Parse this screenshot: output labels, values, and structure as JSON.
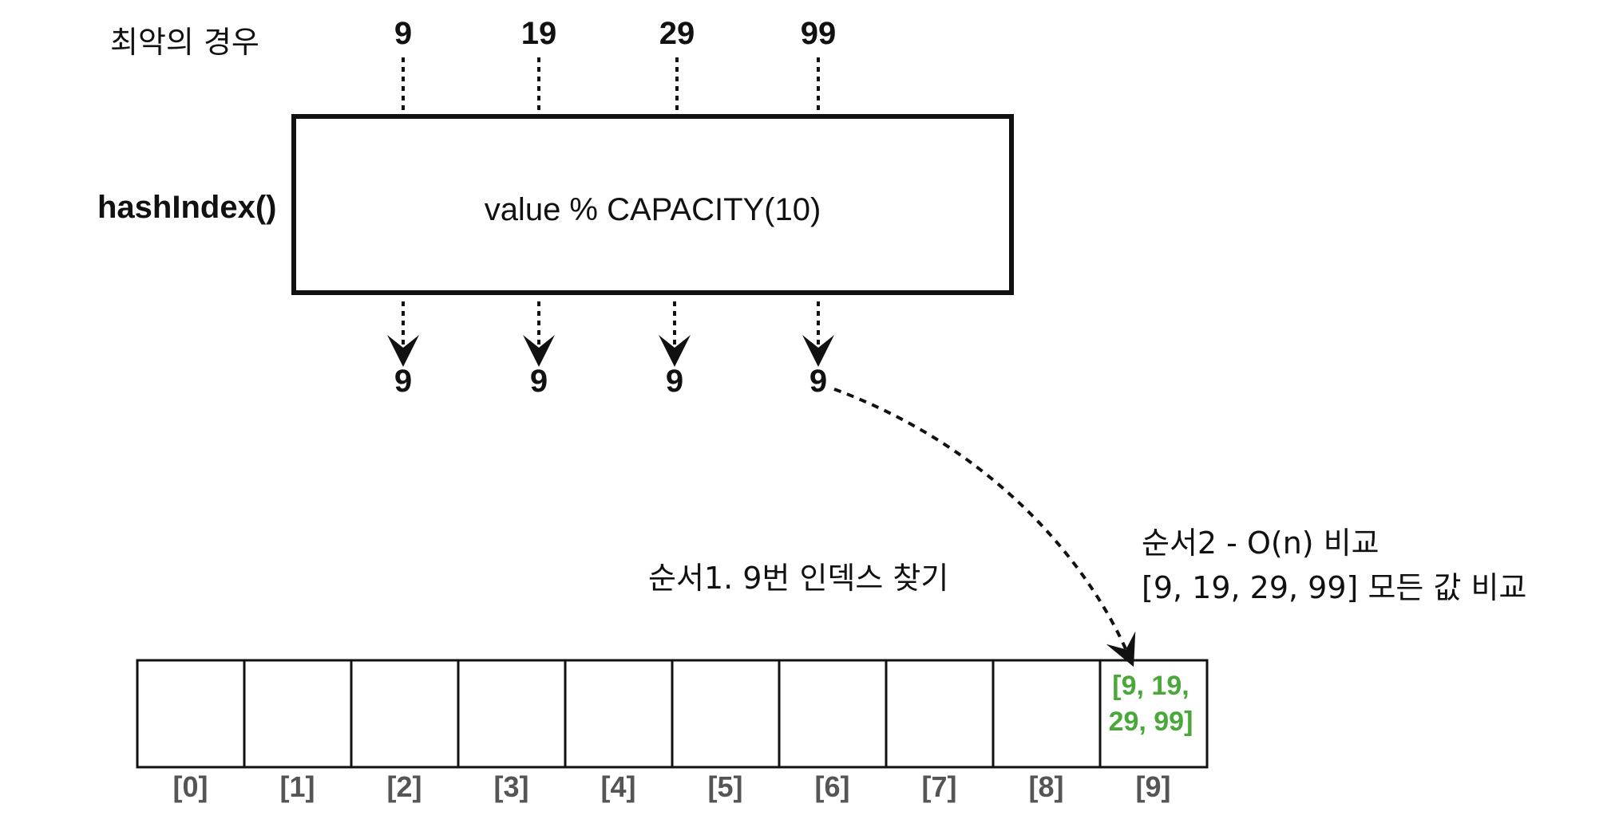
{
  "header": {
    "scenario_label": "최악의 경우"
  },
  "hash_function": {
    "name": "hashIndex()",
    "expression": "value % CAPACITY(10)"
  },
  "inputs": [
    "9",
    "19",
    "29",
    "99"
  ],
  "outputs": [
    "9",
    "9",
    "9",
    "9"
  ],
  "steps": {
    "step1": "순서1. 9번 인덱스 찾기",
    "step2_line1": "순서2 - O(n) 비교",
    "step2_line2": "[9, 19, 29, 99] 모든 값 비교"
  },
  "array": {
    "indices": [
      "[0]",
      "[1]",
      "[2]",
      "[3]",
      "[4]",
      "[5]",
      "[6]",
      "[7]",
      "[8]",
      "[9]"
    ],
    "slot9_line1": "[9, 19,",
    "slot9_line2": "29, 99]",
    "value_color": "#4aa73a"
  }
}
